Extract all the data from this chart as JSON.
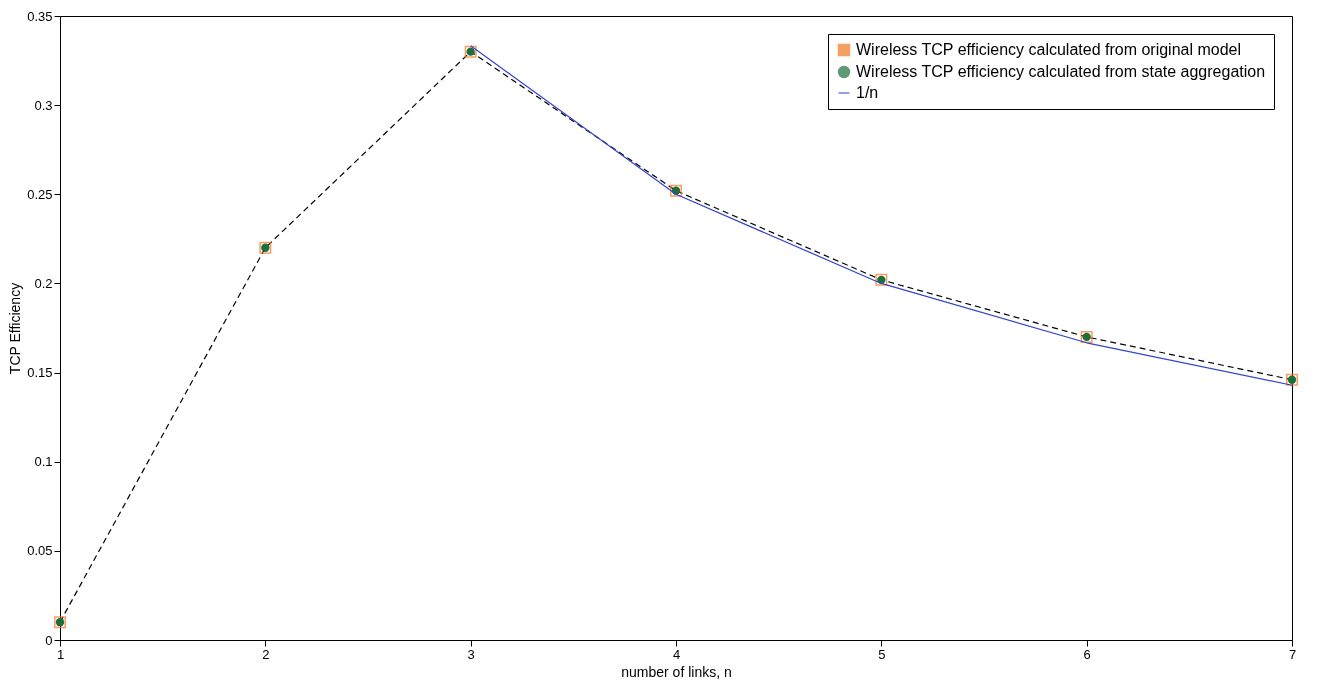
{
  "chart_data": {
    "type": "line",
    "xlabel": "number of links, n",
    "ylabel": "TCP Efficiency",
    "x": [
      1,
      2,
      3,
      4,
      5,
      6,
      7
    ],
    "series": [
      {
        "name": "Wireless TCP efficiency calculated from original model",
        "type": "line",
        "color": "#000000",
        "colors": [
          "#f07820",
          "#f07820",
          "#f07820",
          "#f07820",
          "#f07820",
          "#f07820",
          "#f07820"
        ],
        "marker": "square",
        "line_style": "dashed",
        "values": [
          0.01,
          0.22,
          0.33,
          0.252,
          0.202,
          0.17,
          0.146
        ]
      },
      {
        "name": "Wireless TCP efficiency calculated from state aggregation",
        "type": "scatter",
        "color": "#1e6e3c",
        "marker": "circle",
        "values": [
          0.01,
          0.22,
          0.33,
          0.252,
          0.202,
          0.17,
          0.146
        ]
      },
      {
        "name": "1/n",
        "type": "line",
        "color": "#3344cc",
        "line_style": "solid",
        "x": [
          3,
          4,
          5,
          6,
          7
        ],
        "values": [
          0.3333,
          0.25,
          0.2,
          0.1667,
          0.1429
        ]
      }
    ],
    "xlim": [
      1,
      7
    ],
    "xticks": [
      1,
      2,
      3,
      4,
      5,
      6,
      7
    ],
    "ylim": [
      0,
      0.35
    ],
    "yticks": [
      0,
      0.05,
      0.1,
      0.15,
      0.2,
      0.25,
      0.3,
      0.35
    ],
    "grid": false,
    "legend": "top right"
  }
}
